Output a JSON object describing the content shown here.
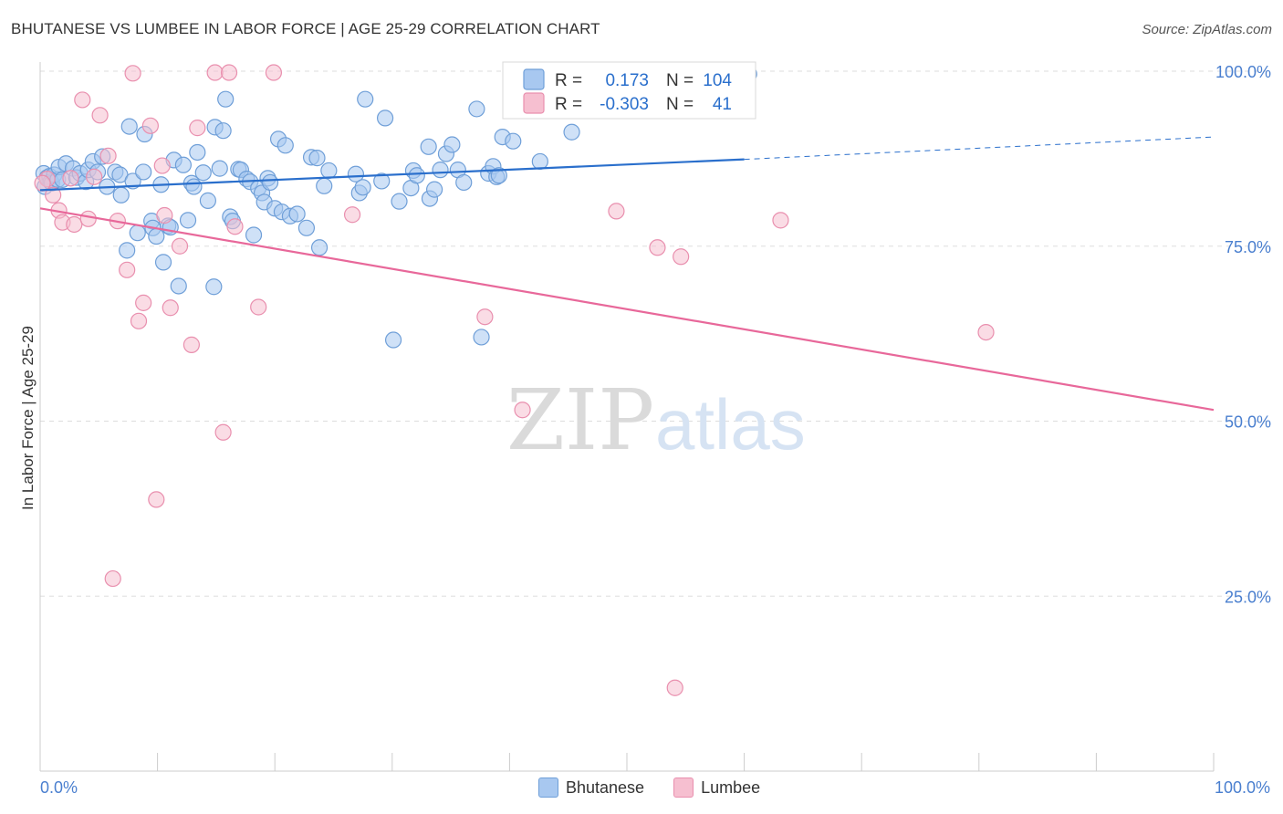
{
  "title": "BHUTANESE VS LUMBEE IN LABOR FORCE | AGE 25-29 CORRELATION CHART",
  "source": "Source: ZipAtlas.com",
  "watermark": {
    "zip": "ZIP",
    "atlas": "atlas"
  },
  "colors": {
    "blue_fill": "#a8c8f0",
    "blue_stroke": "#6f9fd8",
    "blue_line": "#2a6fcc",
    "pink_fill": "#f6bfd0",
    "pink_stroke": "#e98fae",
    "pink_line": "#e8689a",
    "axis_text": "#4a7fcf",
    "grid": "#dddddd"
  },
  "legend_top": {
    "rows": [
      {
        "series": "Bhutanese",
        "r_label": "R =",
        "r_value": "0.173",
        "n_label": "N =",
        "n_value": "104"
      },
      {
        "series": "Lumbee",
        "r_label": "R =",
        "r_value": "-0.303",
        "n_label": "N =",
        "n_value": "41"
      }
    ]
  },
  "legend_bottom": [
    "Bhutanese",
    "Lumbee"
  ],
  "chart_data": {
    "type": "scatter",
    "title": "BHUTANESE VS LUMBEE IN LABOR FORCE | AGE 25-29 CORRELATION CHART",
    "xlabel": "",
    "ylabel": "In Labor Force | Age 25-29",
    "xlim": [
      0,
      100
    ],
    "ylim": [
      0,
      100
    ],
    "x_tick_labels": [
      "0.0%",
      "100.0%"
    ],
    "y_tick_labels": [
      "25.0%",
      "50.0%",
      "75.0%",
      "100.0%"
    ],
    "y_ticks": [
      25,
      50,
      75,
      100
    ],
    "grid": true,
    "series": [
      {
        "name": "Bhutanese",
        "r": 0.173,
        "n": 104,
        "trend": {
          "x0": 0,
          "y0": 83.0,
          "x1": 60,
          "y1": 87.4,
          "dash_to_x": 100,
          "dash_to_y": 90.6
        },
        "points": [
          [
            0.3,
            85.4
          ],
          [
            0.4,
            83.5
          ],
          [
            0.6,
            84.8
          ],
          [
            0.8,
            85.0
          ],
          [
            0.9,
            84.2
          ],
          [
            1.0,
            84.0
          ],
          [
            1.2,
            85.2
          ],
          [
            1.5,
            84.5
          ],
          [
            1.6,
            86.3
          ],
          [
            1.9,
            84.5
          ],
          [
            2.2,
            86.8
          ],
          [
            2.8,
            86.1
          ],
          [
            3.1,
            84.8
          ],
          [
            3.4,
            85.4
          ],
          [
            3.9,
            84.2
          ],
          [
            4.1,
            85.9
          ],
          [
            4.5,
            87.1
          ],
          [
            4.9,
            85.6
          ],
          [
            5.3,
            87.8
          ],
          [
            5.7,
            83.5
          ],
          [
            6.4,
            85.6
          ],
          [
            6.8,
            85.2
          ],
          [
            6.9,
            82.3
          ],
          [
            7.4,
            74.4
          ],
          [
            7.6,
            92.1
          ],
          [
            7.9,
            84.3
          ],
          [
            8.3,
            76.9
          ],
          [
            8.8,
            85.6
          ],
          [
            8.9,
            91.0
          ],
          [
            9.5,
            78.6
          ],
          [
            9.6,
            77.6
          ],
          [
            9.9,
            76.4
          ],
          [
            10.3,
            83.8
          ],
          [
            10.5,
            72.7
          ],
          [
            10.9,
            77.9
          ],
          [
            11.1,
            77.7
          ],
          [
            11.4,
            87.3
          ],
          [
            11.8,
            69.3
          ],
          [
            12.2,
            86.6
          ],
          [
            12.6,
            78.7
          ],
          [
            12.9,
            84.0
          ],
          [
            13.1,
            83.5
          ],
          [
            13.4,
            88.4
          ],
          [
            13.9,
            85.5
          ],
          [
            14.3,
            81.5
          ],
          [
            14.8,
            69.2
          ],
          [
            14.9,
            92.0
          ],
          [
            15.3,
            86.1
          ],
          [
            15.6,
            91.5
          ],
          [
            15.8,
            96.0
          ],
          [
            16.2,
            79.2
          ],
          [
            16.4,
            78.6
          ],
          [
            16.9,
            86.0
          ],
          [
            17.1,
            85.9
          ],
          [
            17.6,
            84.6
          ],
          [
            17.9,
            84.2
          ],
          [
            18.2,
            76.6
          ],
          [
            18.6,
            83.3
          ],
          [
            18.9,
            82.6
          ],
          [
            19.1,
            81.3
          ],
          [
            19.4,
            84.7
          ],
          [
            19.6,
            84.1
          ],
          [
            20.0,
            80.4
          ],
          [
            20.3,
            90.3
          ],
          [
            20.6,
            79.9
          ],
          [
            20.9,
            89.4
          ],
          [
            21.3,
            79.3
          ],
          [
            21.9,
            79.6
          ],
          [
            22.7,
            77.6
          ],
          [
            23.1,
            87.7
          ],
          [
            23.6,
            87.6
          ],
          [
            23.8,
            74.8
          ],
          [
            24.2,
            83.6
          ],
          [
            24.6,
            85.8
          ],
          [
            26.9,
            85.3
          ],
          [
            27.2,
            82.6
          ],
          [
            27.5,
            83.4
          ],
          [
            27.7,
            96.0
          ],
          [
            29.1,
            84.3
          ],
          [
            29.4,
            93.3
          ],
          [
            30.1,
            61.6
          ],
          [
            30.6,
            81.4
          ],
          [
            31.6,
            83.3
          ],
          [
            31.8,
            85.8
          ],
          [
            32.1,
            85.1
          ],
          [
            33.1,
            89.2
          ],
          [
            33.2,
            81.8
          ],
          [
            33.6,
            83.1
          ],
          [
            34.1,
            85.9
          ],
          [
            34.6,
            88.2
          ],
          [
            35.1,
            89.5
          ],
          [
            35.6,
            85.9
          ],
          [
            36.1,
            84.1
          ],
          [
            37.2,
            94.6
          ],
          [
            37.6,
            62.0
          ],
          [
            38.2,
            85.4
          ],
          [
            38.6,
            86.4
          ],
          [
            38.9,
            84.9
          ],
          [
            39.1,
            85.1
          ],
          [
            39.4,
            90.6
          ],
          [
            40.3,
            90.0
          ],
          [
            42.6,
            87.1
          ],
          [
            45.3,
            91.3
          ],
          [
            60.4,
            99.6
          ]
        ]
      },
      {
        "name": "Lumbee",
        "r": -0.303,
        "n": 41,
        "trend": {
          "x0": 0,
          "y0": 80.4,
          "x1": 100,
          "y1": 51.6
        },
        "points": [
          [
            0.6,
            84.6
          ],
          [
            1.1,
            82.3
          ],
          [
            1.6,
            80.1
          ],
          [
            1.9,
            78.4
          ],
          [
            2.6,
            84.7
          ],
          [
            2.9,
            78.1
          ],
          [
            3.6,
            95.9
          ],
          [
            4.1,
            78.9
          ],
          [
            4.6,
            84.9
          ],
          [
            5.1,
            93.7
          ],
          [
            5.8,
            87.9
          ],
          [
            6.6,
            78.6
          ],
          [
            7.4,
            71.6
          ],
          [
            7.9,
            99.7
          ],
          [
            8.4,
            64.3
          ],
          [
            8.8,
            66.9
          ],
          [
            9.4,
            92.2
          ],
          [
            9.9,
            38.8
          ],
          [
            10.4,
            86.5
          ],
          [
            10.6,
            79.4
          ],
          [
            11.1,
            66.2
          ],
          [
            11.9,
            75.0
          ],
          [
            12.9,
            60.9
          ],
          [
            13.4,
            91.9
          ],
          [
            14.9,
            99.8
          ],
          [
            15.6,
            48.4
          ],
          [
            16.1,
            99.8
          ],
          [
            16.6,
            77.8
          ],
          [
            18.6,
            66.3
          ],
          [
            19.9,
            99.8
          ],
          [
            26.6,
            79.5
          ],
          [
            37.9,
            64.9
          ],
          [
            41.1,
            51.6
          ],
          [
            49.1,
            80.0
          ],
          [
            52.6,
            74.8
          ],
          [
            54.6,
            73.5
          ],
          [
            63.1,
            78.7
          ],
          [
            80.6,
            62.7
          ],
          [
            54.1,
            11.9
          ],
          [
            6.2,
            27.5
          ],
          [
            0.2,
            84.0
          ]
        ]
      }
    ]
  }
}
